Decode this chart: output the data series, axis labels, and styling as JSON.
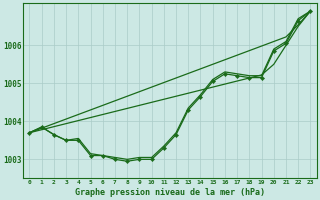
{
  "x": [
    0,
    1,
    2,
    3,
    4,
    5,
    6,
    7,
    8,
    9,
    10,
    11,
    12,
    13,
    14,
    15,
    16,
    17,
    18,
    19,
    20,
    21,
    22,
    23
  ],
  "series_main": [
    1003.7,
    1003.85,
    1003.65,
    1003.5,
    1003.5,
    1003.1,
    1003.1,
    1003.0,
    1002.95,
    1003.0,
    1003.0,
    1003.3,
    1003.65,
    1004.3,
    1004.65,
    1005.05,
    1005.25,
    1005.2,
    1005.15,
    1005.15,
    1005.85,
    1006.05,
    1006.65,
    1006.9
  ],
  "series_smooth": [
    1003.7,
    1003.85,
    1003.65,
    1003.5,
    1003.55,
    1003.15,
    1003.1,
    1003.05,
    1003.0,
    1003.05,
    1003.05,
    1003.35,
    1003.7,
    1004.35,
    1004.7,
    1005.1,
    1005.3,
    1005.25,
    1005.2,
    1005.2,
    1005.9,
    1006.1,
    1006.7,
    1006.9
  ],
  "series_linear1": [
    1003.7,
    1003.82,
    1003.94,
    1004.06,
    1004.18,
    1004.3,
    1004.42,
    1004.54,
    1004.66,
    1004.78,
    1004.9,
    1005.02,
    1005.14,
    1005.26,
    1005.38,
    1005.5,
    1005.62,
    1005.74,
    1005.86,
    1005.98,
    1006.1,
    1006.22,
    1006.54,
    1006.9
  ],
  "series_linear2": [
    1003.7,
    1003.78,
    1003.86,
    1003.94,
    1004.02,
    1004.1,
    1004.18,
    1004.26,
    1004.34,
    1004.42,
    1004.5,
    1004.58,
    1004.66,
    1004.74,
    1004.82,
    1004.9,
    1004.98,
    1005.06,
    1005.14,
    1005.22,
    1005.5,
    1006.0,
    1006.5,
    1006.9
  ],
  "line_color": "#1a6b1a",
  "bg_color": "#cce8e4",
  "grid_color": "#aaccc8",
  "title": "Graphe pression niveau de la mer (hPa)",
  "yticks": [
    1003,
    1004,
    1005,
    1006
  ],
  "ylim": [
    1002.5,
    1007.1
  ],
  "xlim": [
    -0.5,
    23.5
  ]
}
